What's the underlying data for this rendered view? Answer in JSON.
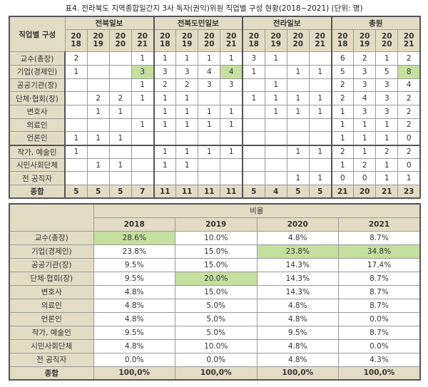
{
  "title": "표4. 전라북도 지역종합일간지 3사 독자(권익)위원 직업별 구성 현황(2018~2021) (단위: 명)",
  "colors": {
    "header": "#e3dcc5",
    "highlight": "#c5df9f"
  },
  "counts": {
    "row_header": "직업별 구성",
    "groups": [
      "전북일보",
      "전북도민일보",
      "전라일보",
      "총원"
    ],
    "years": [
      "20\n18",
      "20\n19",
      "20\n20",
      "20\n21"
    ],
    "rows": [
      {
        "label": "교수(총장)",
        "values": [
          "2",
          "",
          "",
          "1",
          "1",
          "1",
          "1",
          "1",
          "3",
          "1",
          "",
          "",
          "6",
          "2",
          "1",
          "2"
        ]
      },
      {
        "label": "기업(경제인)",
        "values": [
          "1",
          "",
          "",
          "3",
          "3",
          "3",
          "4",
          "4",
          "1",
          "",
          "1",
          "1",
          "5",
          "3",
          "5",
          "8"
        ],
        "highlight": [
          3,
          7,
          15
        ]
      },
      {
        "label": "공공기관(장)",
        "values": [
          "",
          "",
          "",
          "1",
          "2",
          "2",
          "3",
          "3",
          "",
          "1",
          "",
          "",
          "2",
          "3",
          "3",
          "4"
        ]
      },
      {
        "label": "단체·협회(장)",
        "values": [
          "",
          "2",
          "2",
          "1",
          "1",
          "1",
          "",
          "",
          "1",
          "1",
          "1",
          "1",
          "2",
          "4",
          "3",
          "2"
        ]
      },
      {
        "label": "변호사",
        "values": [
          "",
          "1",
          "1",
          "",
          "1",
          "1",
          "1",
          "1",
          "",
          "1",
          "1",
          "1",
          "1",
          "3",
          "3",
          "2"
        ]
      },
      {
        "label": "의료인",
        "values": [
          "",
          "",
          "",
          "1",
          "1",
          "1",
          "1",
          "1",
          "",
          "",
          "",
          "",
          "1",
          "1",
          "1",
          "2"
        ]
      },
      {
        "label": "언론인",
        "values": [
          "1",
          "1",
          "1",
          "",
          "",
          "",
          "",
          "",
          "",
          "",
          "",
          "",
          "1",
          "1",
          "1",
          "0"
        ]
      },
      {
        "label": "작가, 예술인",
        "values": [
          "1",
          "",
          "",
          "",
          "1",
          "1",
          "1",
          "1",
          "",
          "",
          "1",
          "1",
          "2",
          "1",
          "2",
          "2"
        ]
      },
      {
        "label": "시민사회단체",
        "values": [
          "",
          "1",
          "1",
          "",
          "1",
          "1",
          "",
          "",
          "",
          "",
          "",
          "",
          "1",
          "2",
          "1",
          "0"
        ]
      },
      {
        "label": "전 공직자",
        "values": [
          "",
          "",
          "",
          "",
          "",
          "",
          "",
          "",
          "",
          "",
          "1",
          "1",
          "0",
          "0",
          "1",
          "1"
        ]
      }
    ],
    "total": {
      "label": "종합",
      "values": [
        "5",
        "5",
        "5",
        "7",
        "11",
        "11",
        "11",
        "11",
        "5",
        "4",
        "5",
        "5",
        "21",
        "20",
        "21",
        "23"
      ]
    }
  },
  "ratios": {
    "header": "비율",
    "years": [
      "2018",
      "2019",
      "2020",
      "2021"
    ],
    "rows": [
      {
        "label": "교수(총장)",
        "values": [
          "28.6%",
          "10.0%",
          "4.8%",
          "8.7%"
        ],
        "highlight": [
          0
        ]
      },
      {
        "label": "기업(경제인)",
        "values": [
          "23.8%",
          "15.0%",
          "23.8%",
          "34.8%"
        ],
        "highlight": [
          2,
          3
        ]
      },
      {
        "label": "공공기관(장)",
        "values": [
          "9.5%",
          "15.0%",
          "14.3%",
          "17.4%"
        ]
      },
      {
        "label": "단체·협회(장)",
        "values": [
          "9.5%",
          "20.0%",
          "14.3%",
          "8.7%"
        ],
        "highlight": [
          1
        ]
      },
      {
        "label": "변호사",
        "values": [
          "4.8%",
          "15.0%",
          "14.3%",
          "8.7%"
        ]
      },
      {
        "label": "의료인",
        "values": [
          "4.8%",
          "5.0%",
          "4.8%",
          "8.7%"
        ]
      },
      {
        "label": "언론인",
        "values": [
          "4.8%",
          "5.0%",
          "4.8%",
          "0.0%"
        ]
      },
      {
        "label": "작가, 예술인",
        "values": [
          "9.5%",
          "5.0%",
          "9.5%",
          "8.7%"
        ]
      },
      {
        "label": "시민사회단체",
        "values": [
          "4.8%",
          "10.0%",
          "4.8%",
          "0.0%"
        ]
      },
      {
        "label": "전 공직자",
        "values": [
          "0.0%",
          "0.0%",
          "4.8%",
          "4.3%"
        ]
      }
    ],
    "total": {
      "label": "종합",
      "values": [
        "100,0%",
        "100,0%",
        "100,0%",
        "100,0%"
      ]
    }
  }
}
